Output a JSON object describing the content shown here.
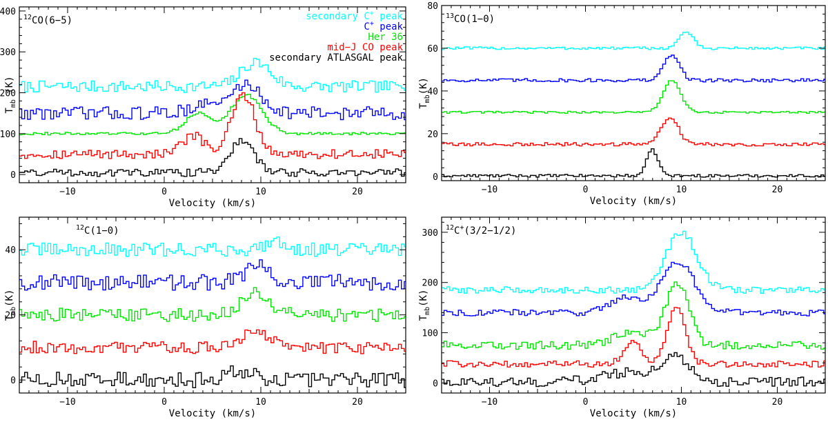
{
  "chart_data": [
    {
      "type": "line",
      "title": "12CO(6-5)",
      "title_parts": {
        "sup": "12",
        "main": "CO(6−5)"
      },
      "xlabel": "Velocity (km/s)",
      "ylabel": {
        "main": "T",
        "sub": "mb",
        "rest": " (K)"
      },
      "xlim": [
        -15,
        25
      ],
      "ylim": [
        -20,
        410
      ],
      "xticks": [
        -10,
        0,
        10,
        20
      ],
      "xtick_labels": [
        "−10",
        "0",
        "10",
        "20"
      ],
      "yticks": [
        0,
        100,
        200,
        300,
        400
      ],
      "ytick_labels": [
        "0",
        "100",
        "200",
        "300",
        "400"
      ],
      "legend": [
        {
          "text": "secondary C",
          "sup": "+",
          "rest": " peak",
          "color": "#00ffff"
        },
        {
          "text": "C",
          "sup": "+",
          "rest": " peak",
          "color": "#0000ff"
        },
        {
          "text": "Her 36",
          "sup": "",
          "rest": "",
          "color": "#00e600"
        },
        {
          "text": "mid−J CO peak",
          "sup": "",
          "rest": "",
          "color": "#ff0000"
        },
        {
          "text": "secondary ATLASGAL peak",
          "sup": "",
          "rest": "",
          "color": "#000000"
        }
      ],
      "series": [
        {
          "name": "secondary C+ peak",
          "color": "#00ffff",
          "baseline": 215,
          "noise": 9,
          "peaks": [
            {
              "center": 9.5,
              "amp": 60,
              "width": 1.5
            }
          ]
        },
        {
          "name": "C+ peak",
          "color": "#0000ff",
          "baseline": 150,
          "noise": 10,
          "peaks": [
            {
              "center": 8.5,
              "amp": 70,
              "width": 1.6
            },
            {
              "center": 4,
              "amp": 20,
              "width": 1.5
            }
          ]
        },
        {
          "name": "Her 36",
          "color": "#00e600",
          "baseline": 100,
          "noise": 2,
          "peaks": [
            {
              "center": 8.5,
              "amp": 95,
              "width": 1.6
            },
            {
              "center": 3.5,
              "amp": 50,
              "width": 1.3
            }
          ]
        },
        {
          "name": "mid-J CO peak",
          "color": "#ff0000",
          "baseline": 50,
          "noise": 7,
          "peaks": [
            {
              "center": 8.2,
              "amp": 145,
              "width": 1.2
            },
            {
              "center": 3,
              "amp": 45,
              "width": 1.1
            }
          ]
        },
        {
          "name": "secondary ATLASGAL peak",
          "color": "#000000",
          "baseline": 5,
          "noise": 6,
          "peaks": [
            {
              "center": 8,
              "amp": 75,
              "width": 1.3
            }
          ]
        }
      ]
    },
    {
      "type": "line",
      "title": "13CO(1-0)",
      "title_parts": {
        "sup": "13",
        "main": "CO(1−0)"
      },
      "xlabel": "Velocity (km/s)",
      "ylabel": {
        "main": "T",
        "sub": "mb",
        "rest": "(K)"
      },
      "xlim": [
        -15,
        25
      ],
      "ylim": [
        -2,
        80
      ],
      "xticks": [
        -10,
        0,
        10,
        20
      ],
      "xtick_labels": [
        "−10",
        "0",
        "10",
        "20"
      ],
      "yticks": [
        0,
        20,
        40,
        60,
        80
      ],
      "ytick_labels": [
        "0",
        "20",
        "40",
        "60",
        "80"
      ],
      "legend": [],
      "series": [
        {
          "name": "secondary C+ peak",
          "color": "#00ffff",
          "baseline": 60,
          "noise": 0.4,
          "peaks": [
            {
              "center": 10.5,
              "amp": 8,
              "width": 0.7
            }
          ]
        },
        {
          "name": "C+ peak",
          "color": "#0000ff",
          "baseline": 45,
          "noise": 0.5,
          "peaks": [
            {
              "center": 9,
              "amp": 12,
              "width": 0.8
            }
          ]
        },
        {
          "name": "Her 36",
          "color": "#00e600",
          "baseline": 30,
          "noise": 0.3,
          "peaks": [
            {
              "center": 9,
              "amp": 15,
              "width": 0.9
            }
          ]
        },
        {
          "name": "mid-J CO peak",
          "color": "#ff0000",
          "baseline": 15,
          "noise": 0.5,
          "peaks": [
            {
              "center": 8.8,
              "amp": 13,
              "width": 0.9
            }
          ]
        },
        {
          "name": "secondary ATLASGAL peak",
          "color": "#000000",
          "baseline": 0.3,
          "noise": 0.4,
          "peaks": [
            {
              "center": 7,
              "amp": 12,
              "width": 0.6
            }
          ]
        }
      ]
    },
    {
      "type": "line",
      "title": "12C(1-0)",
      "title_parts": {
        "sup": "12",
        "main": "C(1−0)"
      },
      "xlabel": "Velocity (km/s)",
      "ylabel": {
        "main": "T",
        "sub": "mb",
        "rest": "(K)"
      },
      "xlim": [
        -15,
        25
      ],
      "ylim": [
        -4,
        50
      ],
      "xticks": [
        -10,
        0,
        10,
        20
      ],
      "xtick_labels": [
        "−10",
        "0",
        "10",
        "20"
      ],
      "yticks": [
        0,
        20,
        40
      ],
      "ytick_labels": [
        "0",
        "20",
        "40"
      ],
      "legend": [],
      "series": [
        {
          "name": "secondary C+ peak",
          "color": "#00ffff",
          "baseline": 40,
          "noise": 1.3,
          "peaks": [
            {
              "center": 11.5,
              "amp": 3,
              "width": 1.0
            }
          ]
        },
        {
          "name": "C+ peak",
          "color": "#0000ff",
          "baseline": 30,
          "noise": 1.5,
          "peaks": [
            {
              "center": 9.5,
              "amp": 5,
              "width": 1.2
            }
          ]
        },
        {
          "name": "Her 36",
          "color": "#00e600",
          "baseline": 20,
          "noise": 1.3,
          "peaks": [
            {
              "center": 9.5,
              "amp": 7,
              "width": 1.3
            }
          ]
        },
        {
          "name": "mid-J CO peak",
          "color": "#ff0000",
          "baseline": 10,
          "noise": 1.2,
          "peaks": [
            {
              "center": 9.5,
              "amp": 5,
              "width": 1.3
            }
          ]
        },
        {
          "name": "secondary ATLASGAL peak",
          "color": "#000000",
          "baseline": 0,
          "noise": 1.5,
          "peaks": [
            {
              "center": 8,
              "amp": 3,
              "width": 1.5
            }
          ]
        }
      ]
    },
    {
      "type": "line",
      "title": "12C+(3/2-1/2)",
      "title_parts": {
        "sup": "12",
        "main": "C",
        "sup2": "+",
        "rest": "(3/2−1/2)"
      },
      "xlabel": "Velocity (km/s)",
      "ylabel": {
        "main": "T",
        "sub": "mb",
        "rest": "(K)"
      },
      "xlim": [
        -15,
        25
      ],
      "ylim": [
        -20,
        330
      ],
      "xticks": [
        -10,
        0,
        10,
        20
      ],
      "xtick_labels": [
        "−10",
        "0",
        "10",
        "20"
      ],
      "yticks": [
        0,
        100,
        200,
        300
      ],
      "ytick_labels": [
        "0",
        "100",
        "200",
        "300"
      ],
      "legend": [],
      "series": [
        {
          "name": "secondary C+ peak",
          "color": "#00ffff",
          "baseline": 185,
          "noise": 4,
          "peaks": [
            {
              "center": 10,
              "amp": 115,
              "width": 1.6
            }
          ]
        },
        {
          "name": "C+ peak",
          "color": "#0000ff",
          "baseline": 140,
          "noise": 4,
          "peaks": [
            {
              "center": 9.6,
              "amp": 100,
              "width": 1.8
            },
            {
              "center": 4,
              "amp": 30,
              "width": 1.5
            }
          ]
        },
        {
          "name": "Her 36",
          "color": "#00e600",
          "baseline": 75,
          "noise": 5,
          "peaks": [
            {
              "center": 9.6,
              "amp": 120,
              "width": 1.2
            },
            {
              "center": 5,
              "amp": 25,
              "width": 2
            }
          ]
        },
        {
          "name": "mid-J CO peak",
          "color": "#ff0000",
          "baseline": 38,
          "noise": 4,
          "peaks": [
            {
              "center": 9.5,
              "amp": 115,
              "width": 0.9
            },
            {
              "center": 5,
              "amp": 45,
              "width": 0.9
            }
          ]
        },
        {
          "name": "secondary ATLASGAL peak",
          "color": "#000000",
          "baseline": 2,
          "noise": 6,
          "peaks": [
            {
              "center": 9.5,
              "amp": 45,
              "width": 1.4
            },
            {
              "center": 5,
              "amp": 20,
              "width": 3
            }
          ]
        }
      ]
    }
  ]
}
